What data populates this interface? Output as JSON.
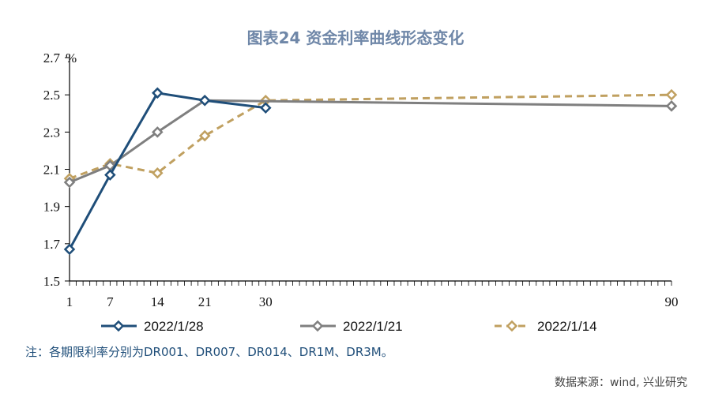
{
  "title": "图表24 资金利率曲线形态变化",
  "note": "注：各期限利率分别为DR001、DR007、DR014、DR1M、DR3M。",
  "source": "数据来源：wind, 兴业研究",
  "chart_data": {
    "type": "line",
    "x": [
      1,
      7,
      14,
      21,
      30,
      90
    ],
    "x_tick_labels": [
      "1",
      "7",
      "14",
      "21",
      "30",
      "90"
    ],
    "y_tick_labels": [
      "1.5",
      "1.7",
      "1.9",
      "2.1",
      "2.3",
      "2.5",
      "2.7"
    ],
    "y_unit": "%",
    "ylim": [
      1.5,
      2.7
    ],
    "grid": false,
    "legend_position": "bottom",
    "series": [
      {
        "name": "2022/1/28",
        "x": [
          1,
          7,
          14,
          21,
          30
        ],
        "values": [
          1.67,
          2.07,
          2.51,
          2.47,
          2.43
        ],
        "color": "#1f4e79",
        "dash": "solid",
        "marker": "diamond"
      },
      {
        "name": "2022/1/21",
        "x": [
          1,
          7,
          14,
          21,
          90
        ],
        "values": [
          2.03,
          2.12,
          2.3,
          2.47,
          2.44
        ],
        "color": "#7f7f7f",
        "dash": "solid",
        "marker": "diamond"
      },
      {
        "name": "2022/1/14",
        "x": [
          1,
          7,
          14,
          21,
          30,
          90
        ],
        "values": [
          2.05,
          2.13,
          2.08,
          2.28,
          2.47,
          2.5
        ],
        "color": "#c0a060",
        "dash": "dashed",
        "marker": "diamond"
      }
    ]
  }
}
